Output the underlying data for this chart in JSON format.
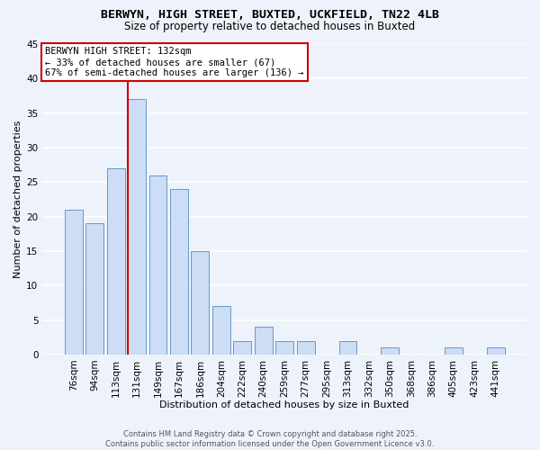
{
  "title_line1": "BERWYN, HIGH STREET, BUXTED, UCKFIELD, TN22 4LB",
  "title_line2": "Size of property relative to detached houses in Buxted",
  "xlabel": "Distribution of detached houses by size in Buxted",
  "ylabel": "Number of detached properties",
  "categories": [
    "76sqm",
    "94sqm",
    "113sqm",
    "131sqm",
    "149sqm",
    "167sqm",
    "186sqm",
    "204sqm",
    "222sqm",
    "240sqm",
    "259sqm",
    "277sqm",
    "295sqm",
    "313sqm",
    "332sqm",
    "350sqm",
    "368sqm",
    "386sqm",
    "405sqm",
    "423sqm",
    "441sqm"
  ],
  "values": [
    21,
    19,
    27,
    37,
    26,
    24,
    15,
    7,
    2,
    4,
    2,
    2,
    0,
    2,
    0,
    1,
    0,
    0,
    1,
    0,
    1
  ],
  "bar_color": "#ccddf5",
  "bar_edge_color": "#6699cc",
  "vline_index": 3,
  "vline_color": "#cc0000",
  "annotation_title": "BERWYN HIGH STREET: 132sqm",
  "annotation_line1": "← 33% of detached houses are smaller (67)",
  "annotation_line2": "67% of semi-detached houses are larger (136) →",
  "annotation_box_color": "#ffffff",
  "annotation_box_edge": "#cc0000",
  "ylim": [
    0,
    45
  ],
  "yticks": [
    0,
    5,
    10,
    15,
    20,
    25,
    30,
    35,
    40,
    45
  ],
  "footer_line1": "Contains HM Land Registry data © Crown copyright and database right 2025.",
  "footer_line2": "Contains public sector information licensed under the Open Government Licence v3.0.",
  "background_color": "#eef3fb",
  "grid_color": "#ffffff",
  "title_fontsize": 9.5,
  "subtitle_fontsize": 8.5,
  "xlabel_fontsize": 8.0,
  "ylabel_fontsize": 8.0,
  "tick_fontsize": 7.5,
  "footer_fontsize": 6.0
}
